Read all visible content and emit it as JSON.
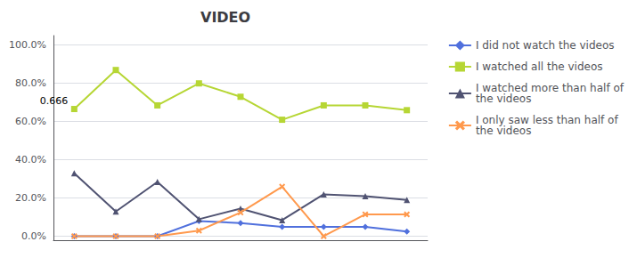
{
  "chart_data": {
    "type": "line",
    "title": "VIDEO",
    "x": [
      1,
      2,
      3,
      4,
      5,
      6,
      7,
      8,
      9
    ],
    "series": [
      {
        "name": "I did not watch the videos",
        "marker": "diamond",
        "values": [
          0.001,
          0.001,
          0.001,
          0.08,
          0.07,
          0.05,
          0.05,
          0.05,
          0.025
        ]
      },
      {
        "name": "I watched all the videos",
        "marker": "square",
        "values": [
          0.666,
          0.87,
          0.685,
          0.8,
          0.73,
          0.61,
          0.685,
          0.685,
          0.66
        ]
      },
      {
        "name": "I watched more than half of\nthe videos",
        "marker": "triangle",
        "values": [
          0.33,
          0.13,
          0.285,
          0.09,
          0.145,
          0.085,
          0.22,
          0.21,
          0.19
        ]
      },
      {
        "name": "I only saw less than half of\nthe videos",
        "marker": "x",
        "values": [
          0.001,
          0.001,
          0.001,
          0.03,
          0.125,
          0.26,
          0.001,
          0.115,
          0.115
        ]
      }
    ],
    "xlim": [
      0.5,
      9.5
    ],
    "xticks": [],
    "ylim": [
      -0.02,
      1.05
    ],
    "yticks": [
      {
        "value": 0.0,
        "label": "0.0%"
      },
      {
        "value": 0.2,
        "label": "20.0%"
      },
      {
        "value": 0.4,
        "label": "40.0%"
      },
      {
        "value": 0.6,
        "label": "60.0%"
      },
      {
        "value": 0.8,
        "label": "80.0%"
      },
      {
        "value": 1.0,
        "label": "100.0%"
      }
    ],
    "annotations": [
      {
        "text": "0.666",
        "x": 1,
        "y": 0.666
      }
    ],
    "grid": true,
    "legend": "right",
    "tick_labels": "y"
  }
}
